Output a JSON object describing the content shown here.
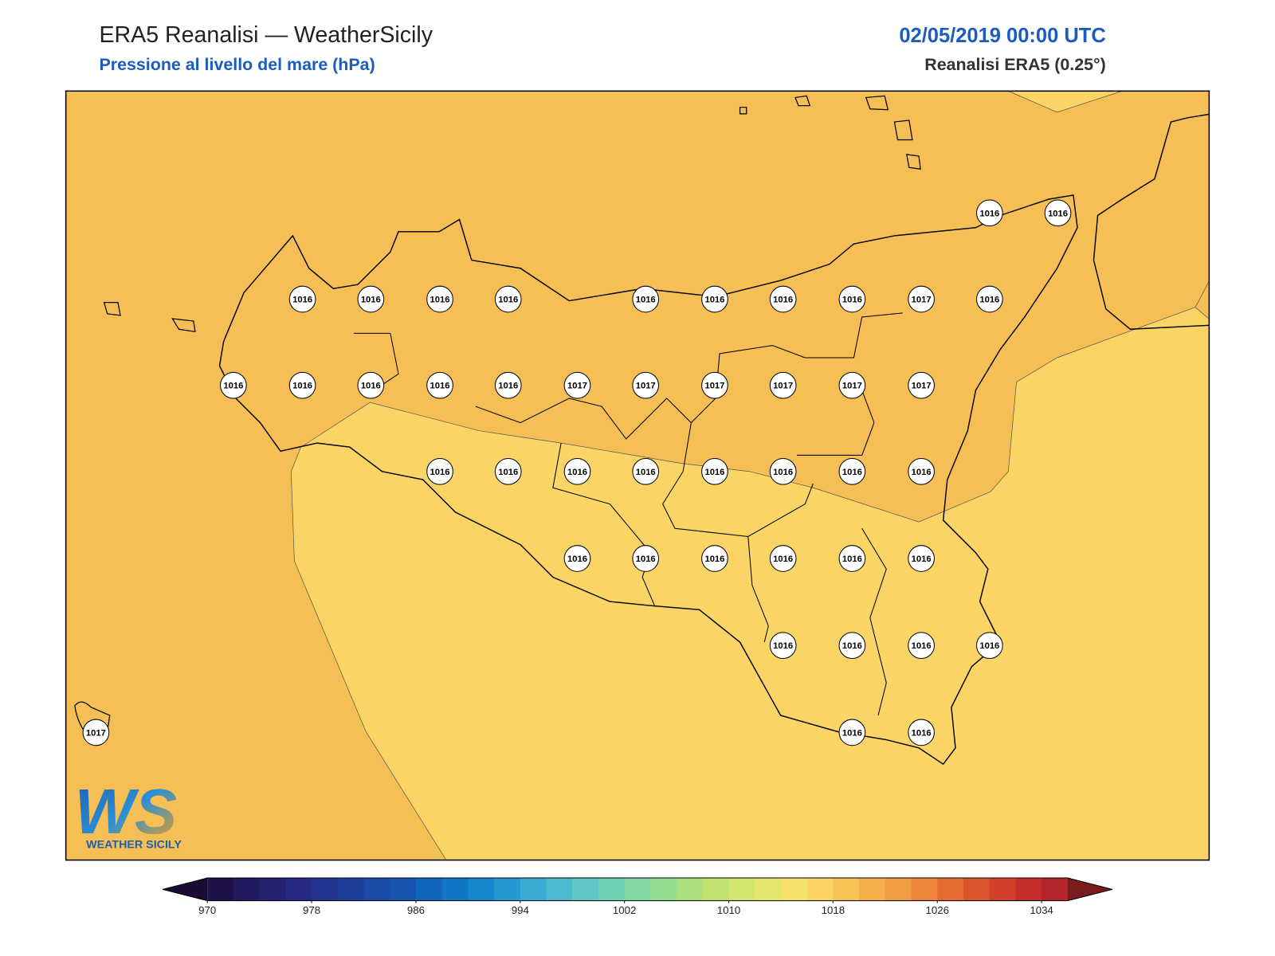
{
  "header": {
    "title": "ERA5 Reanalisi — WeatherSicily",
    "subtitle": "Pressione al livello del mare (hPa)",
    "date": "02/05/2019 00:00 UTC",
    "source": "Reanalisi ERA5 (0.25°)"
  },
  "stations": [
    1016,
    1016,
    1016,
    1016,
    1016,
    1016,
    1016,
    1016,
    1016,
    1016,
    1017,
    1016,
    1016,
    1016,
    1016,
    1016,
    1016,
    1017,
    1017,
    1017,
    1017,
    1017,
    1017,
    1016,
    1016,
    1016,
    1016,
    1016,
    1016,
    1016,
    1016,
    1016,
    1016,
    1016,
    1016,
    1016,
    1016,
    1016,
    1016,
    1016,
    1016,
    1016,
    1016,
    1017
  ],
  "colorbar": {
    "lim": [
      970,
      1036
    ],
    "ticks": [
      970,
      978,
      986,
      994,
      1002,
      1010,
      1018,
      1026,
      1034
    ],
    "colors": [
      "#1f1147",
      "#221a5e",
      "#252070",
      "#262a80",
      "#23348f",
      "#1d3f9a",
      "#1a4aa6",
      "#1656b0",
      "#1266bd",
      "#0f77c6",
      "#1687cc",
      "#2898d0",
      "#3aaad2",
      "#4bbacf",
      "#5ec6c4",
      "#6fd0b5",
      "#80d7a2",
      "#95dc8e",
      "#acdf7b",
      "#bfe36e",
      "#d2e56c",
      "#e3e56d",
      "#f7e16e",
      "#fbd465",
      "#f7c357",
      "#f4b04c",
      "#f09c42",
      "#ec853a",
      "#e56d33",
      "#dc552e",
      "#d2402b",
      "#c52f2b",
      "#b3252a"
    ],
    "under_color": "#1a0c35",
    "over_color": "#7a1c1e"
  },
  "logo": {
    "mark": "WS",
    "name": "WEATHER SICILY"
  }
}
